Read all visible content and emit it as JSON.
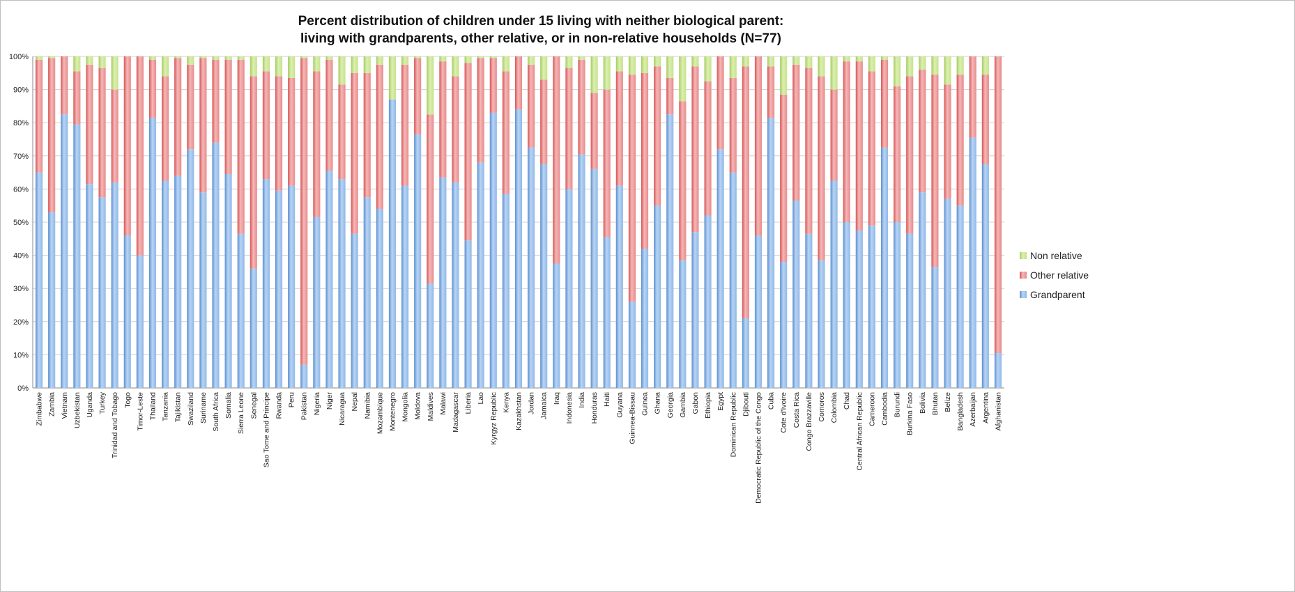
{
  "chart_data": {
    "type": "bar",
    "stacked": true,
    "title_lines": [
      "Percent distribution of children under 15 living with neither biological parent:",
      "living with grandparents, other relative, or in non-relative households (N=77)"
    ],
    "xlabel": "",
    "ylabel": "",
    "ylim": [
      0,
      100
    ],
    "yticks": [
      "0%",
      "10%",
      "20%",
      "30%",
      "40%",
      "50%",
      "60%",
      "70%",
      "80%",
      "90%",
      "100%"
    ],
    "grid": true,
    "legend_position": "right",
    "legend": [
      "Non relative",
      "Other relative",
      "Grandparent"
    ],
    "colors": {
      "Grandparent": "#8fb8e8",
      "Grandparent_light": "#b9d4f4",
      "Grandparent_dark": "#5a8fd0",
      "Other relative": "#e88a8a",
      "Other relative_light": "#f4b8b8",
      "Other relative_dark": "#d85454",
      "Non relative": "#c6e38a",
      "Non relative_light": "#dcefb2",
      "Non relative_dark": "#a4cc5e"
    },
    "categories": [
      "Zimbabwe",
      "Zambia",
      "Vietnam",
      "Uzbekistan",
      "Uganda",
      "Turkey",
      "Trinidad and Tobago",
      "Togo",
      "Timor-Leste",
      "Thailand",
      "Tanzania",
      "Tajikistan",
      "Swaziland",
      "Suriname",
      "South Africa",
      "Somalia",
      "Sierra Leone",
      "Senegal",
      "Sao Tome and Principe",
      "Rwanda",
      "Peru",
      "Pakistan",
      "Nigeria",
      "Niger",
      "Nicaragua",
      "Nepal",
      "Namibia",
      "Mozambique",
      "Montenegro",
      "Mongolia",
      "Moldova",
      "Maldives",
      "Malawi",
      "Madagascar",
      "Liberia",
      "Lao",
      "Kyrgyz Republic",
      "Kenya",
      "Kazakhstan",
      "Jordan",
      "Jamaica",
      "Iraq",
      "Indonesia",
      "India",
      "Honduras",
      "Haiti",
      "Guyana",
      "Guinnea-Bissau",
      "Guinea",
      "Ghana",
      "Georgia",
      "Gambia",
      "Gabon",
      "Ethiopia",
      "Egypt",
      "Dominican Republic",
      "Djibouti",
      "Democratic Republic of the Congo",
      "Cuba",
      "Cote d'Ivoire",
      "Costa Rica",
      "Congo Brazzaville",
      "Comoros",
      "Colombia",
      "Chad",
      "Central African Republic",
      "Cameroon",
      "Cambodia",
      "Burundi",
      "Burkina Faso",
      "Bolivia",
      "Bhutan",
      "Belize",
      "Bangladesh",
      "Azerbaijan",
      "Argentina",
      "Afghanistan"
    ],
    "series": [
      {
        "name": "Grandparent",
        "values": [
          65,
          53,
          82.5,
          79.5,
          61.5,
          57.5,
          62,
          46,
          40,
          81.5,
          62.5,
          64,
          72,
          59,
          74,
          64.5,
          46.5,
          36,
          63,
          59.5,
          61,
          7,
          51.5,
          65.5,
          63,
          46.5,
          57.5,
          54,
          87,
          61,
          76.5,
          31.5,
          63.5,
          62,
          44.5,
          68,
          83,
          58.5,
          84,
          72.5,
          67.5,
          37.5,
          60,
          70.5,
          66,
          45.5,
          61,
          26,
          42,
          55,
          82.5,
          38.5,
          47,
          52,
          72,
          65,
          21,
          46,
          81.5,
          38,
          56.5,
          46.5,
          38.5,
          62.5,
          50,
          47.5,
          49,
          72.5,
          50,
          46.5,
          59,
          36.5,
          57,
          55,
          75.5,
          67.5,
          10.5
        ]
      },
      {
        "name": "Other relative",
        "values": [
          34,
          46.5,
          17.5,
          16,
          36,
          39,
          28,
          54,
          60,
          17.5,
          31.5,
          35.5,
          25.5,
          40.5,
          25,
          34.5,
          52.5,
          58,
          32.5,
          34.5,
          32.5,
          92.5,
          44,
          33.5,
          28.5,
          48.5,
          37.5,
          43.5,
          0,
          36.5,
          23,
          51,
          35,
          32,
          53.5,
          31.5,
          16.5,
          37,
          16,
          25,
          25.5,
          62.5,
          36.5,
          28.5,
          23,
          44.5,
          34.5,
          68.5,
          53,
          42,
          11,
          48,
          50,
          40.5,
          28,
          28.5,
          76,
          54,
          15.5,
          50.5,
          41,
          50,
          55.5,
          27.5,
          48.5,
          51,
          46.5,
          26.5,
          41,
          47.5,
          37,
          58,
          34.5,
          39.5,
          24.5,
          27,
          89.5
        ]
      },
      {
        "name": "Non relative",
        "values": [
          1,
          0.5,
          0,
          4.5,
          2.5,
          3.5,
          10,
          0,
          0,
          1,
          6,
          0.5,
          2.5,
          0.5,
          1,
          1,
          1,
          6,
          4.5,
          6,
          6.5,
          0.5,
          4.5,
          1,
          8.5,
          5,
          5,
          2.5,
          13,
          2.5,
          0.5,
          17.5,
          1.5,
          6,
          2,
          0.5,
          0.5,
          4.5,
          0,
          2.5,
          7,
          0,
          3.5,
          1,
          11,
          10,
          4.5,
          5.5,
          5,
          3,
          6.5,
          13.5,
          3,
          7.5,
          0,
          6.5,
          3,
          0,
          3,
          11.5,
          2.5,
          3.5,
          6,
          10,
          1.5,
          1.5,
          4.5,
          1,
          9,
          6,
          4,
          5.5,
          8.5,
          5.5,
          0,
          5.5,
          0
        ]
      }
    ]
  }
}
